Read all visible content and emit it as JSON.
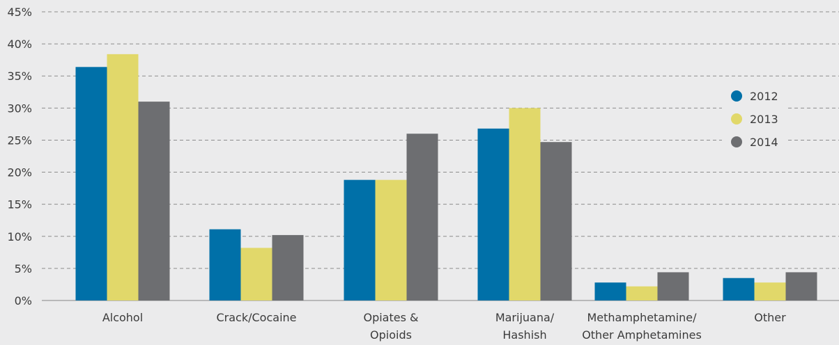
{
  "chart_data": {
    "type": "bar",
    "categories": [
      [
        "Alcohol"
      ],
      [
        "Crack/Cocaine"
      ],
      [
        "Opiates &",
        "Opioids"
      ],
      [
        "Marijuana/",
        "Hashish"
      ],
      [
        "Methamphetamine/",
        "Other Amphetamines"
      ],
      [
        "Other"
      ]
    ],
    "series": [
      {
        "name": "2012",
        "color": "#0070a8",
        "values": [
          36.4,
          11.1,
          18.8,
          26.8,
          2.8,
          3.5
        ]
      },
      {
        "name": "2013",
        "color": "#e1d86a",
        "values": [
          38.4,
          8.2,
          18.8,
          30.0,
          2.2,
          2.8
        ]
      },
      {
        "name": "2014",
        "color": "#6d6e71",
        "values": [
          31.0,
          10.2,
          26.0,
          24.7,
          4.4,
          4.4
        ]
      }
    ],
    "ylim": [
      0,
      45
    ],
    "yticks": [
      0,
      5,
      10,
      15,
      20,
      25,
      30,
      35,
      40,
      45
    ],
    "ytick_labels": [
      "0%",
      "5%",
      "10%",
      "15%",
      "20%",
      "25%",
      "30%",
      "35%",
      "40%",
      "45%"
    ],
    "grid": true,
    "legend_position": "right"
  }
}
